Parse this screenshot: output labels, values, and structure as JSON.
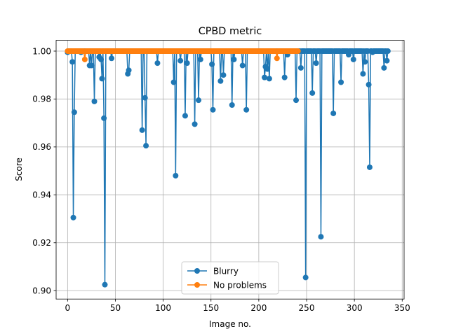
{
  "chart_data": {
    "type": "line",
    "title": "CPBD metric",
    "xlabel": "Image no.",
    "ylabel": "Score",
    "xlim": [
      -12,
      352
    ],
    "ylim": [
      0.8965,
      1.0045
    ],
    "xticks": [
      0,
      50,
      100,
      150,
      200,
      250,
      300,
      350
    ],
    "yticks": [
      0.9,
      0.92,
      0.94,
      0.96,
      0.98,
      1.0
    ],
    "ytick_labels": [
      "0.90",
      "0.92",
      "0.94",
      "0.96",
      "0.98",
      "1.00"
    ],
    "grid": true,
    "legend_position": "lower-center",
    "series": [
      {
        "name": "Blurry",
        "color": "#1f77b4",
        "baseline": 1.0,
        "x_start": 0,
        "x_end": 335,
        "dips": [
          [
            0,
            0.9995
          ],
          [
            5,
            0.9955
          ],
          [
            6,
            0.9305
          ],
          [
            7,
            0.9745
          ],
          [
            14,
            0.9995
          ],
          [
            23,
            0.994
          ],
          [
            25,
            0.994
          ],
          [
            28,
            0.979
          ],
          [
            33,
            0.9975
          ],
          [
            35,
            0.9965
          ],
          [
            36,
            0.9885
          ],
          [
            38,
            0.972
          ],
          [
            39,
            0.9025
          ],
          [
            46,
            0.997
          ],
          [
            63,
            0.9905
          ],
          [
            64,
            0.992
          ],
          [
            78,
            0.967
          ],
          [
            81,
            0.9805
          ],
          [
            82,
            0.9605
          ],
          [
            94,
            0.995
          ],
          [
            111,
            0.987
          ],
          [
            113,
            0.948
          ],
          [
            118,
            0.996
          ],
          [
            123,
            0.973
          ],
          [
            125,
            0.995
          ],
          [
            133,
            0.9695
          ],
          [
            137,
            0.9795
          ],
          [
            139,
            0.9965
          ],
          [
            151,
            0.9945
          ],
          [
            152,
            0.9755
          ],
          [
            160,
            0.9875
          ],
          [
            163,
            0.99
          ],
          [
            172,
            0.9775
          ],
          [
            174,
            0.9965
          ],
          [
            183,
            0.994
          ],
          [
            187,
            0.9755
          ],
          [
            206,
            0.989
          ],
          [
            207,
            0.9935
          ],
          [
            209,
            0.9925
          ],
          [
            211,
            0.9885
          ],
          [
            227,
            0.989
          ],
          [
            230,
            0.9985
          ],
          [
            239,
            0.9795
          ],
          [
            244,
            0.993
          ],
          [
            249,
            0.9055
          ],
          [
            256,
            0.9825
          ],
          [
            260,
            0.995
          ],
          [
            265,
            0.9225
          ],
          [
            278,
            0.974
          ],
          [
            286,
            0.987
          ],
          [
            294,
            0.9985
          ],
          [
            299,
            0.9965
          ],
          [
            309,
            0.9905
          ],
          [
            311,
            0.9955
          ],
          [
            315,
            0.986
          ],
          [
            316,
            0.9515
          ],
          [
            319,
            0.9995
          ],
          [
            331,
            0.993
          ],
          [
            334,
            0.996
          ]
        ]
      },
      {
        "name": "No problems",
        "color": "#ff7f0e",
        "baseline": 1.0,
        "x_start": 0,
        "x_end": 241,
        "dips": [
          [
            18,
            0.9965
          ],
          [
            219,
            0.997
          ]
        ]
      }
    ]
  }
}
